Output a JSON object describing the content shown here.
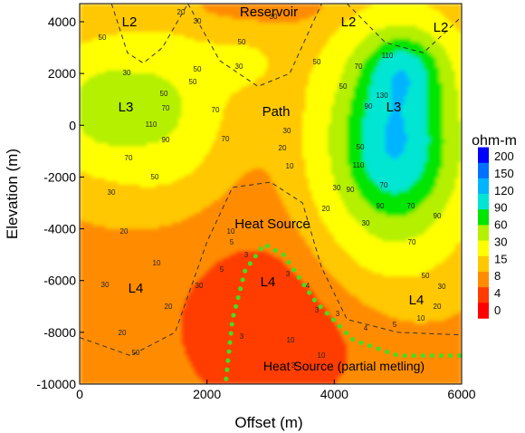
{
  "chart_data": {
    "type": "heatmap",
    "title": "",
    "xlabel": "Offset (m)",
    "ylabel": "Elevation (m)",
    "xlim": [
      0,
      6000
    ],
    "ylim": [
      -10000,
      4700
    ],
    "x_ticks": [
      0,
      2000,
      4000,
      6000
    ],
    "y_ticks": [
      -10000,
      -8000,
      -6000,
      -4000,
      -2000,
      0,
      2000,
      4000
    ],
    "colorbar": {
      "title": "ohm-m",
      "levels": [
        200,
        150,
        120,
        90,
        60,
        30,
        15,
        8,
        4,
        0
      ],
      "colors": [
        "#0000ff",
        "#0070ff",
        "#00b4ff",
        "#00e6d2",
        "#00e600",
        "#b4f000",
        "#ffff00",
        "#ffc800",
        "#ff8c00",
        "#ff3c00",
        "#ff0000"
      ]
    },
    "resistivity_field": {
      "background": 14,
      "anomalies": [
        {
          "x": 4950,
          "y": -700,
          "peak": 140,
          "sx": 700,
          "sy": 2600
        },
        {
          "x": 5100,
          "y": 2300,
          "peak": 60,
          "sx": 450,
          "sy": 1000
        },
        {
          "x": 1200,
          "y": 600,
          "peak": 55,
          "sx": 650,
          "sy": 1900
        },
        {
          "x": 200,
          "y": 700,
          "peak": 45,
          "sx": 450,
          "sy": 1500
        },
        {
          "x": 2600,
          "y": 2400,
          "peak": 18,
          "sx": 500,
          "sy": 900
        },
        {
          "x": 3000,
          "y": -7800,
          "peak": -10,
          "sx": 1400,
          "sy": 3200
        },
        {
          "x": 3000,
          "y": 4500,
          "peak": -6,
          "sx": 900,
          "sy": 400
        }
      ]
    },
    "region_labels": [
      "Reservoir",
      "L2",
      "L2",
      "L2",
      "L3",
      "L3",
      "Path",
      "Heat Source",
      "L4",
      "L4",
      "L4",
      "Heat Source (partial metling)"
    ],
    "contour_labels": [
      "50",
      "30",
      "20",
      "30",
      "50",
      "30",
      "50",
      "70",
      "50",
      "70",
      "30",
      "50",
      "70",
      "110",
      "130",
      "90",
      "50",
      "30",
      "20",
      "10",
      "30",
      "20",
      "50",
      "70",
      "90",
      "110",
      "70",
      "90",
      "30",
      "10",
      "5",
      "3",
      "5",
      "3",
      "4",
      "3",
      "10",
      "10",
      "30",
      "20",
      "10",
      "20",
      "30",
      "50",
      "70",
      "90",
      "70",
      "50",
      "30",
      "20",
      "10",
      "5",
      "4",
      "3",
      "3",
      "3",
      "50",
      "20",
      "30",
      "50",
      "70",
      "90",
      "110"
    ],
    "boundaries": {
      "l3_upper": [
        [
          500,
          4700
        ],
        [
          750,
          2800
        ],
        [
          1000,
          2400
        ],
        [
          1300,
          3000
        ],
        [
          1700,
          4700
        ]
      ],
      "reservoir_base": [
        [
          1700,
          4700
        ],
        [
          2200,
          2500
        ],
        [
          2800,
          1500
        ],
        [
          3300,
          2000
        ],
        [
          3800,
          4700
        ]
      ],
      "l2_right": [
        [
          4200,
          4700
        ],
        [
          4800,
          3200
        ],
        [
          5400,
          2800
        ],
        [
          6000,
          4200
        ]
      ],
      "heat_source_top": [
        [
          0,
          -8200
        ],
        [
          800,
          -8900
        ],
        [
          1500,
          -8000
        ],
        [
          2000,
          -4500
        ],
        [
          2400,
          -2400
        ],
        [
          3000,
          -2200
        ],
        [
          3500,
          -3000
        ],
        [
          3800,
          -5500
        ],
        [
          4200,
          -7500
        ],
        [
          5000,
          -8000
        ],
        [
          6000,
          -8100
        ]
      ],
      "partial_melt_boundary": [
        [
          2300,
          -9800
        ],
        [
          2400,
          -7500
        ],
        [
          2600,
          -5600
        ],
        [
          2900,
          -4600
        ],
        [
          3200,
          -5000
        ],
        [
          3700,
          -6800
        ],
        [
          4300,
          -8300
        ],
        [
          5000,
          -8900
        ],
        [
          6000,
          -8900
        ]
      ]
    }
  }
}
